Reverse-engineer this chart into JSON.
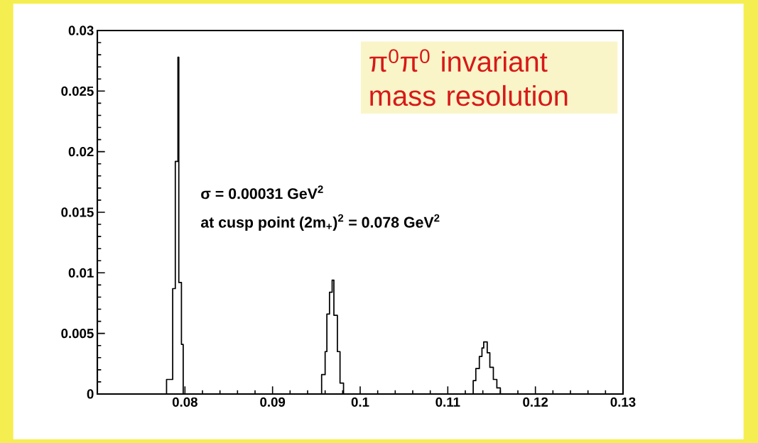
{
  "chart_data": {
    "type": "step",
    "xlim": [
      0.07,
      0.13
    ],
    "ylim": [
      0,
      0.03
    ],
    "xticks": [
      0.08,
      0.09,
      0.1,
      0.11,
      0.12,
      0.13
    ],
    "yticks": [
      0,
      0.005,
      0.01,
      0.015,
      0.02,
      0.025,
      0.03
    ],
    "series": [
      {
        "color": "#000000",
        "x": [
          0.07,
          0.0779,
          0.0786,
          0.0789,
          0.0792,
          0.0793,
          0.0796,
          0.0798,
          0.0956,
          0.096,
          0.0962,
          0.0965,
          0.0968,
          0.097,
          0.0974,
          0.0977,
          0.0981,
          0.1129,
          0.1132,
          0.1136,
          0.1139,
          0.1141,
          0.1145,
          0.1148,
          0.1152,
          0.1156,
          0.116,
          0.13
        ],
        "values": [
          0,
          0.0012,
          0.0087,
          0.0192,
          0.0278,
          0.0092,
          0.0041,
          0,
          0.0016,
          0.0035,
          0.0066,
          0.0084,
          0.0094,
          0.0065,
          0.0035,
          0.0009,
          0,
          0.0011,
          0.0021,
          0.0031,
          0.0038,
          0.0043,
          0.0034,
          0.0022,
          0.0012,
          0.0005,
          0,
          0
        ]
      }
    ],
    "annotations": [
      "π$^{0}$π$^{0}$ invariant mass resolution",
      "σ = 0.00031 GeV$^{2}$",
      "at cusp point (2m$_{+}$)$^{2}$ = 0.078 GeV$^{2}$"
    ],
    "grid": false
  }
}
